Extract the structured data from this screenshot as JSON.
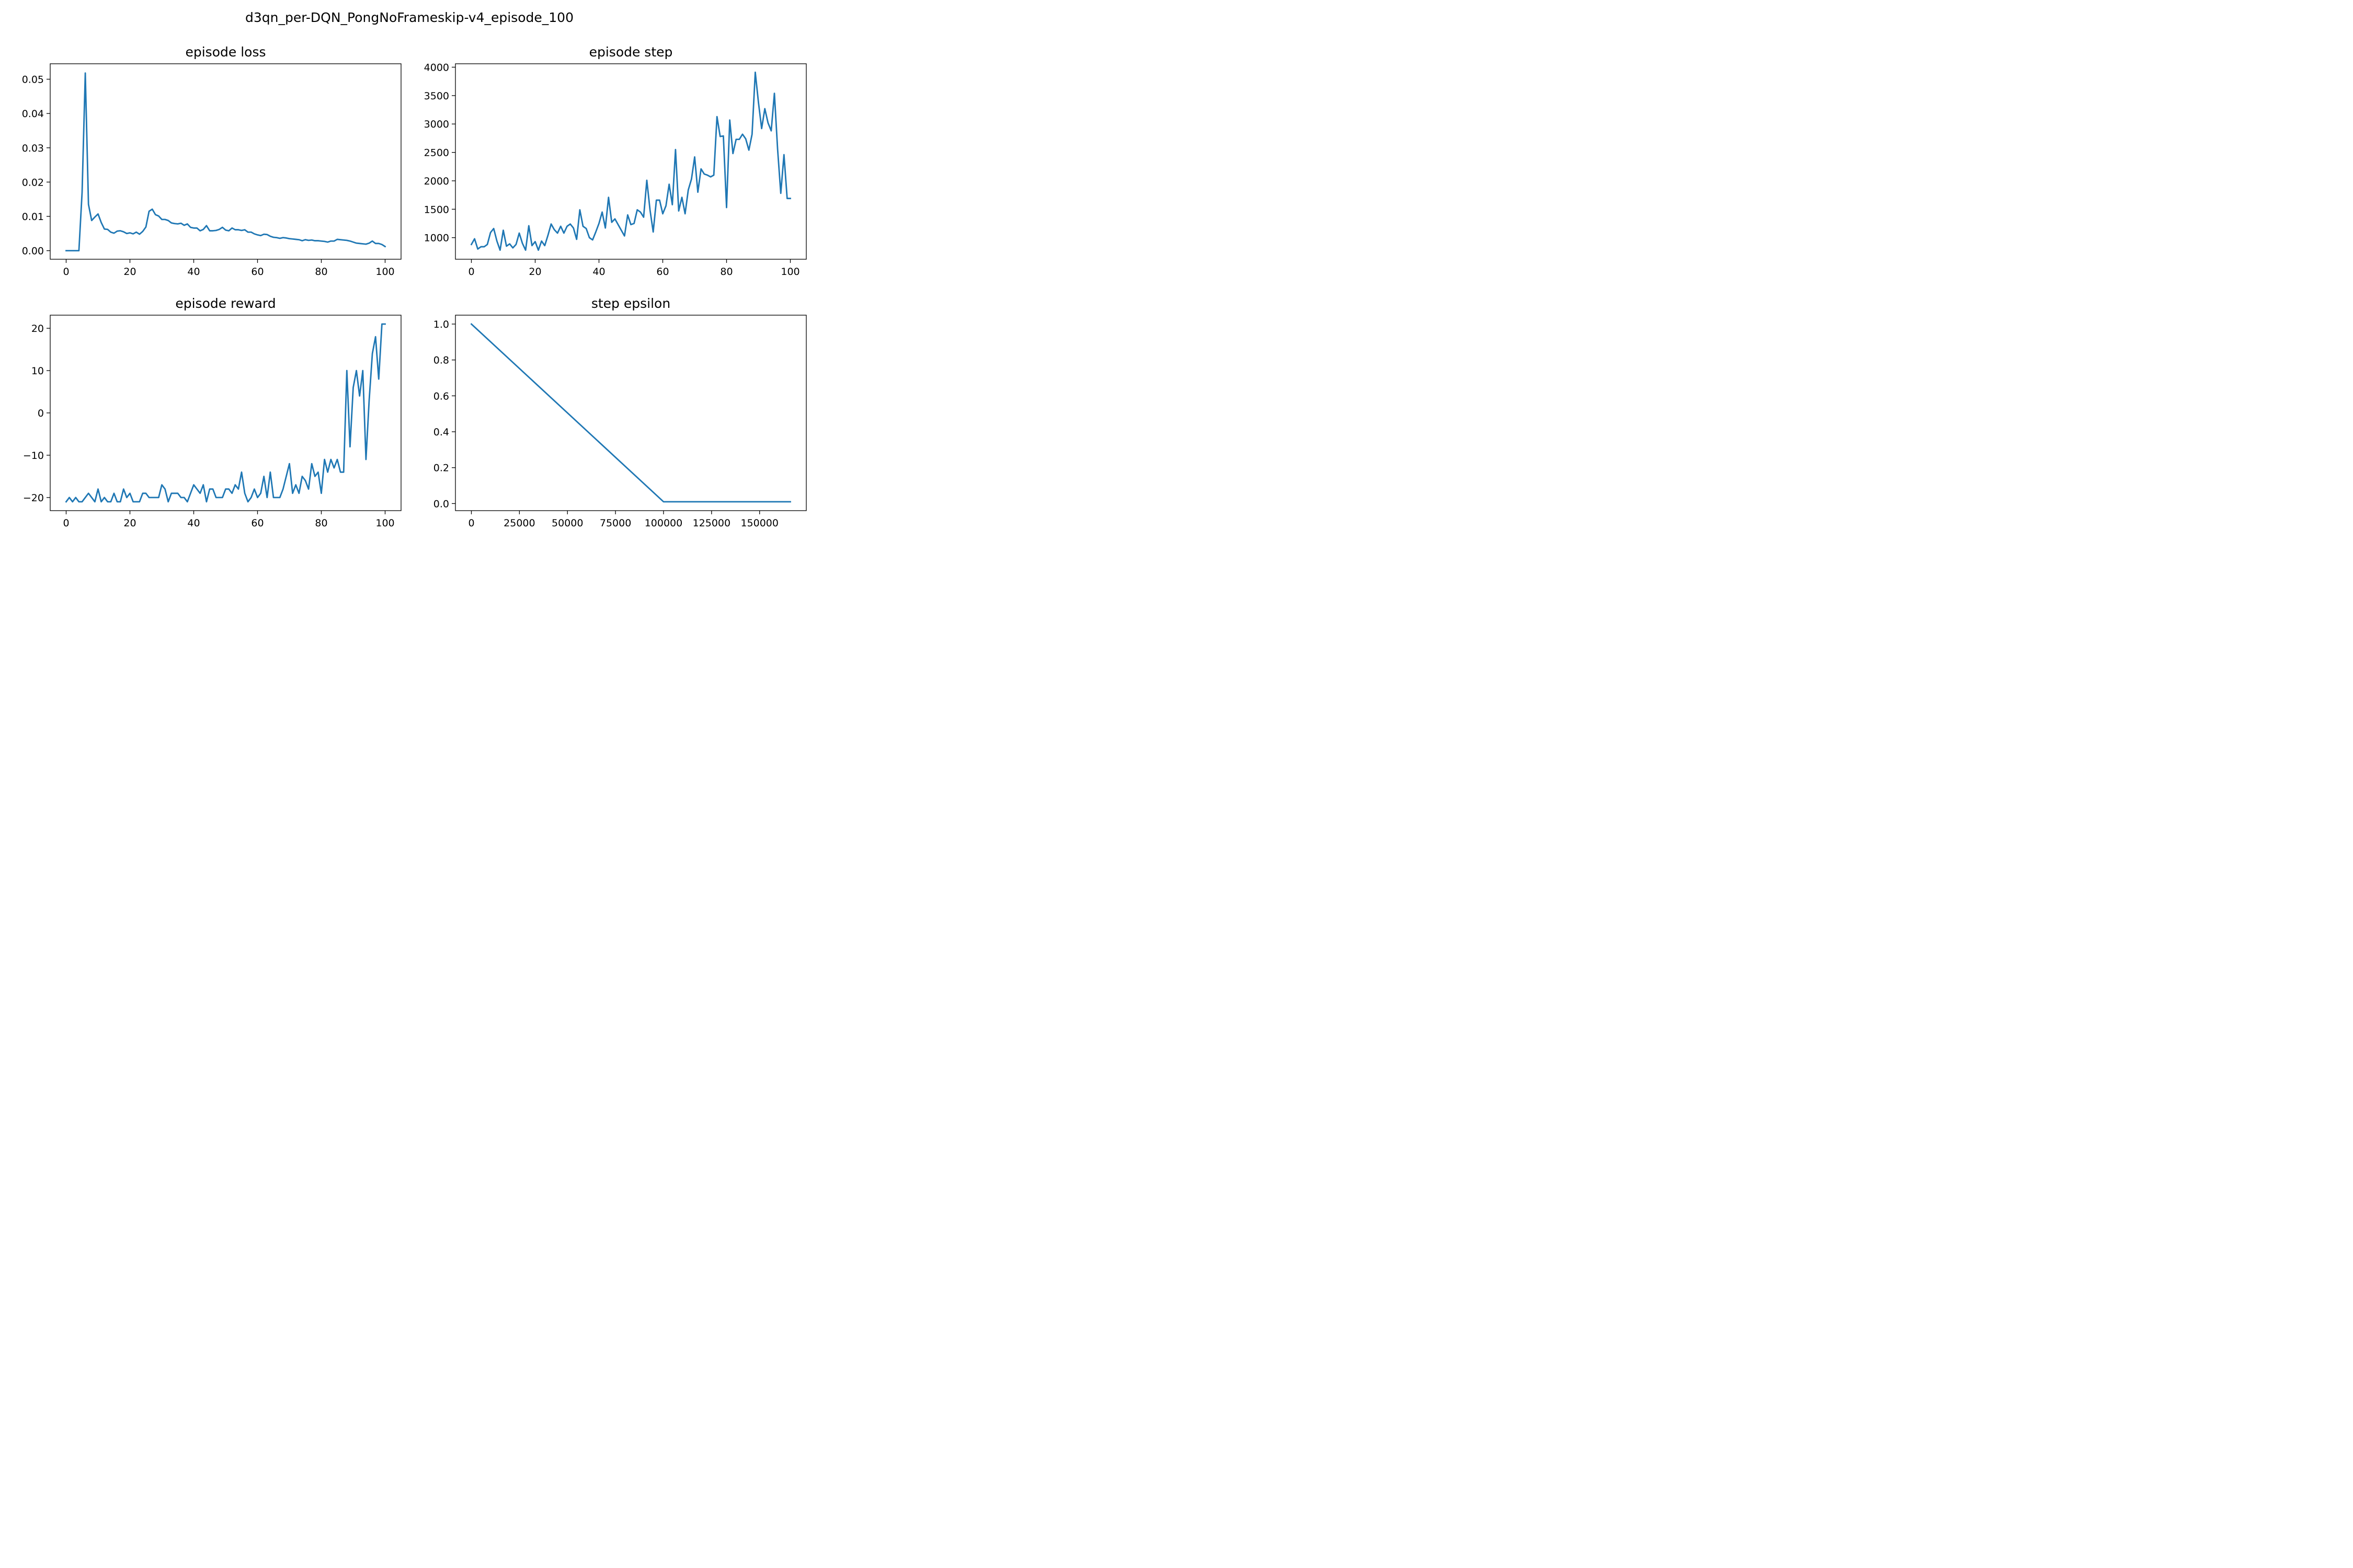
{
  "figure": {
    "title": "d3qn_per-DQN_PongNoFrameskip-v4_episode_100"
  },
  "chart_data": [
    {
      "id": "loss",
      "type": "line",
      "title": "episode loss",
      "color": "#1f77b4",
      "xlim": [
        -5,
        105
      ],
      "ylim": [
        -0.0025,
        0.0545
      ],
      "xticks": [
        0,
        20,
        40,
        60,
        80,
        100
      ],
      "xtick_labels": [
        "0",
        "20",
        "40",
        "60",
        "80",
        "100"
      ],
      "yticks": [
        0,
        0.01,
        0.02,
        0.03,
        0.04,
        0.05
      ],
      "ytick_labels": [
        "0.00",
        "0.01",
        "0.02",
        "0.03",
        "0.04",
        "0.05"
      ],
      "series": [
        {
          "x": [
            0,
            1,
            2,
            3,
            4,
            5,
            6,
            7,
            8,
            9,
            10,
            11,
            12,
            13,
            14,
            15,
            16,
            17,
            18,
            19,
            20,
            21,
            22,
            23,
            24,
            25,
            26,
            27,
            28,
            29,
            30,
            31,
            32,
            33,
            34,
            35,
            36,
            37,
            38,
            39,
            40,
            41,
            42,
            43,
            44,
            45,
            46,
            47,
            48,
            49,
            50,
            51,
            52,
            53,
            54,
            55,
            56,
            57,
            58,
            59,
            60,
            61,
            62,
            63,
            64,
            65,
            66,
            67,
            68,
            69,
            70,
            71,
            72,
            73,
            74,
            75,
            76,
            77,
            78,
            79,
            80,
            81,
            82,
            83,
            84,
            85,
            86,
            87,
            88,
            89,
            90,
            91,
            92,
            93,
            94,
            95,
            96,
            97,
            98,
            99,
            100
          ],
          "y": [
            0,
            0,
            0,
            0,
            0,
            0.017,
            0.0518,
            0.0135,
            0.0088,
            0.0098,
            0.0107,
            0.0082,
            0.0063,
            0.0062,
            0.0054,
            0.0051,
            0.0057,
            0.0058,
            0.0055,
            0.005,
            0.0052,
            0.0049,
            0.0054,
            0.0048,
            0.0056,
            0.0069,
            0.0115,
            0.0121,
            0.0105,
            0.0101,
            0.0091,
            0.0091,
            0.0088,
            0.0081,
            0.0079,
            0.0078,
            0.008,
            0.0074,
            0.0078,
            0.0068,
            0.0066,
            0.0066,
            0.0058,
            0.0062,
            0.0073,
            0.0058,
            0.0058,
            0.0059,
            0.0062,
            0.0068,
            0.006,
            0.0058,
            0.0066,
            0.0061,
            0.0061,
            0.0059,
            0.0061,
            0.0054,
            0.0054,
            0.0049,
            0.0046,
            0.0044,
            0.0048,
            0.0047,
            0.0042,
            0.0039,
            0.0038,
            0.0036,
            0.0038,
            0.0037,
            0.0035,
            0.0034,
            0.0033,
            0.0032,
            0.0029,
            0.0032,
            0.003,
            0.0031,
            0.0029,
            0.0029,
            0.0028,
            0.0027,
            0.0025,
            0.0028,
            0.0028,
            0.0033,
            0.0032,
            0.0031,
            0.003,
            0.0028,
            0.0025,
            0.0022,
            0.0021,
            0.002,
            0.0019,
            0.0022,
            0.0028,
            0.0021,
            0.0021,
            0.0018,
            0.0012
          ]
        }
      ]
    },
    {
      "id": "step",
      "type": "line",
      "title": "episode step",
      "color": "#1f77b4",
      "xlim": [
        -5,
        105
      ],
      "ylim": [
        620,
        4060
      ],
      "xticks": [
        0,
        20,
        40,
        60,
        80,
        100
      ],
      "xtick_labels": [
        "0",
        "20",
        "40",
        "60",
        "80",
        "100"
      ],
      "yticks": [
        1000,
        1500,
        2000,
        2500,
        3000,
        3500,
        4000
      ],
      "ytick_labels": [
        "1000",
        "1500",
        "2000",
        "2500",
        "3000",
        "3500",
        "4000"
      ],
      "series": [
        {
          "x": [
            0,
            1,
            2,
            3,
            4,
            5,
            6,
            7,
            8,
            9,
            10,
            11,
            12,
            13,
            14,
            15,
            16,
            17,
            18,
            19,
            20,
            21,
            22,
            23,
            24,
            25,
            26,
            27,
            28,
            29,
            30,
            31,
            32,
            33,
            34,
            35,
            36,
            37,
            38,
            39,
            40,
            41,
            42,
            43,
            44,
            45,
            46,
            47,
            48,
            49,
            50,
            51,
            52,
            53,
            54,
            55,
            56,
            57,
            58,
            59,
            60,
            61,
            62,
            63,
            64,
            65,
            66,
            67,
            68,
            69,
            70,
            71,
            72,
            73,
            74,
            75,
            76,
            77,
            78,
            79,
            80,
            81,
            82,
            83,
            84,
            85,
            86,
            87,
            88,
            89,
            90,
            91,
            92,
            93,
            94,
            95,
            96,
            97,
            98,
            99,
            100
          ],
          "y": [
            880,
            980,
            800,
            840,
            840,
            880,
            1090,
            1160,
            940,
            780,
            1130,
            850,
            890,
            820,
            880,
            1080,
            900,
            780,
            1210,
            860,
            930,
            780,
            940,
            860,
            1040,
            1240,
            1140,
            1080,
            1200,
            1080,
            1200,
            1240,
            1170,
            970,
            1490,
            1200,
            1160,
            1000,
            960,
            1100,
            1250,
            1450,
            1170,
            1710,
            1270,
            1330,
            1230,
            1130,
            1030,
            1400,
            1230,
            1250,
            1490,
            1450,
            1360,
            2010,
            1490,
            1100,
            1660,
            1660,
            1420,
            1560,
            1940,
            1580,
            2550,
            1470,
            1710,
            1420,
            1840,
            2030,
            2420,
            1800,
            2210,
            2120,
            2100,
            2070,
            2100,
            3130,
            2780,
            2790,
            1530,
            3070,
            2480,
            2730,
            2730,
            2820,
            2740,
            2540,
            2820,
            3910,
            3380,
            2920,
            3270,
            3020,
            2880,
            3540,
            2560,
            1780,
            2460,
            1690,
            1690
          ]
        }
      ]
    },
    {
      "id": "reward",
      "type": "line",
      "title": "episode reward",
      "color": "#1f77b4",
      "xlim": [
        -5,
        105
      ],
      "ylim": [
        -23.1,
        23.1
      ],
      "xticks": [
        0,
        20,
        40,
        60,
        80,
        100
      ],
      "xtick_labels": [
        "0",
        "20",
        "40",
        "60",
        "80",
        "100"
      ],
      "yticks": [
        -20,
        -10,
        0,
        10,
        20
      ],
      "ytick_labels": [
        "−20",
        "−10",
        "0",
        "10",
        "20"
      ],
      "series": [
        {
          "x": [
            0,
            1,
            2,
            3,
            4,
            5,
            6,
            7,
            8,
            9,
            10,
            11,
            12,
            13,
            14,
            15,
            16,
            17,
            18,
            19,
            20,
            21,
            22,
            23,
            24,
            25,
            26,
            27,
            28,
            29,
            30,
            31,
            32,
            33,
            34,
            35,
            36,
            37,
            38,
            39,
            40,
            41,
            42,
            43,
            44,
            45,
            46,
            47,
            48,
            49,
            50,
            51,
            52,
            53,
            54,
            55,
            56,
            57,
            58,
            59,
            60,
            61,
            62,
            63,
            64,
            65,
            66,
            67,
            68,
            69,
            70,
            71,
            72,
            73,
            74,
            75,
            76,
            77,
            78,
            79,
            80,
            81,
            82,
            83,
            84,
            85,
            86,
            87,
            88,
            89,
            90,
            91,
            92,
            93,
            94,
            95,
            96,
            97,
            98,
            99,
            100
          ],
          "y": [
            -21,
            -20,
            -21,
            -20,
            -21,
            -21,
            -20,
            -19,
            -20,
            -21,
            -18,
            -21,
            -20,
            -21,
            -21,
            -19,
            -21,
            -21,
            -18,
            -20,
            -19,
            -21,
            -21,
            -21,
            -19,
            -19,
            -20,
            -20,
            -20,
            -20,
            -17,
            -18,
            -21,
            -19,
            -19,
            -19,
            -20,
            -20,
            -21,
            -19,
            -17,
            -18,
            -19,
            -17,
            -21,
            -18,
            -18,
            -20,
            -20,
            -20,
            -18,
            -18,
            -19,
            -17,
            -18,
            -14,
            -19,
            -21,
            -20,
            -18,
            -20,
            -19,
            -15,
            -20,
            -14,
            -20,
            -20,
            -20,
            -18,
            -15,
            -12,
            -19,
            -17,
            -19,
            -15,
            -16,
            -18,
            -12,
            -15,
            -14,
            -19,
            -11,
            -14,
            -11,
            -13,
            -11,
            -14,
            -14,
            10,
            -8,
            6,
            10,
            4,
            10,
            -11,
            3,
            14,
            18,
            8,
            21,
            21
          ]
        }
      ]
    },
    {
      "id": "epsilon",
      "type": "line",
      "title": "step epsilon",
      "color": "#1f77b4",
      "xlim": [
        -8300,
        174300
      ],
      "ylim": [
        -0.0395,
        1.0495
      ],
      "xticks": [
        0,
        25000,
        50000,
        75000,
        100000,
        125000,
        150000
      ],
      "xtick_labels": [
        "0",
        "25000",
        "50000",
        "75000",
        "100000",
        "125000",
        "150000"
      ],
      "yticks": [
        0,
        0.2,
        0.4,
        0.6,
        0.8,
        1.0
      ],
      "ytick_labels": [
        "0.0",
        "0.2",
        "0.4",
        "0.6",
        "0.8",
        "1.0"
      ],
      "series": [
        {
          "x": [
            0,
            100000,
            166000
          ],
          "y": [
            1.0,
            0.01,
            0.01
          ]
        }
      ]
    }
  ]
}
